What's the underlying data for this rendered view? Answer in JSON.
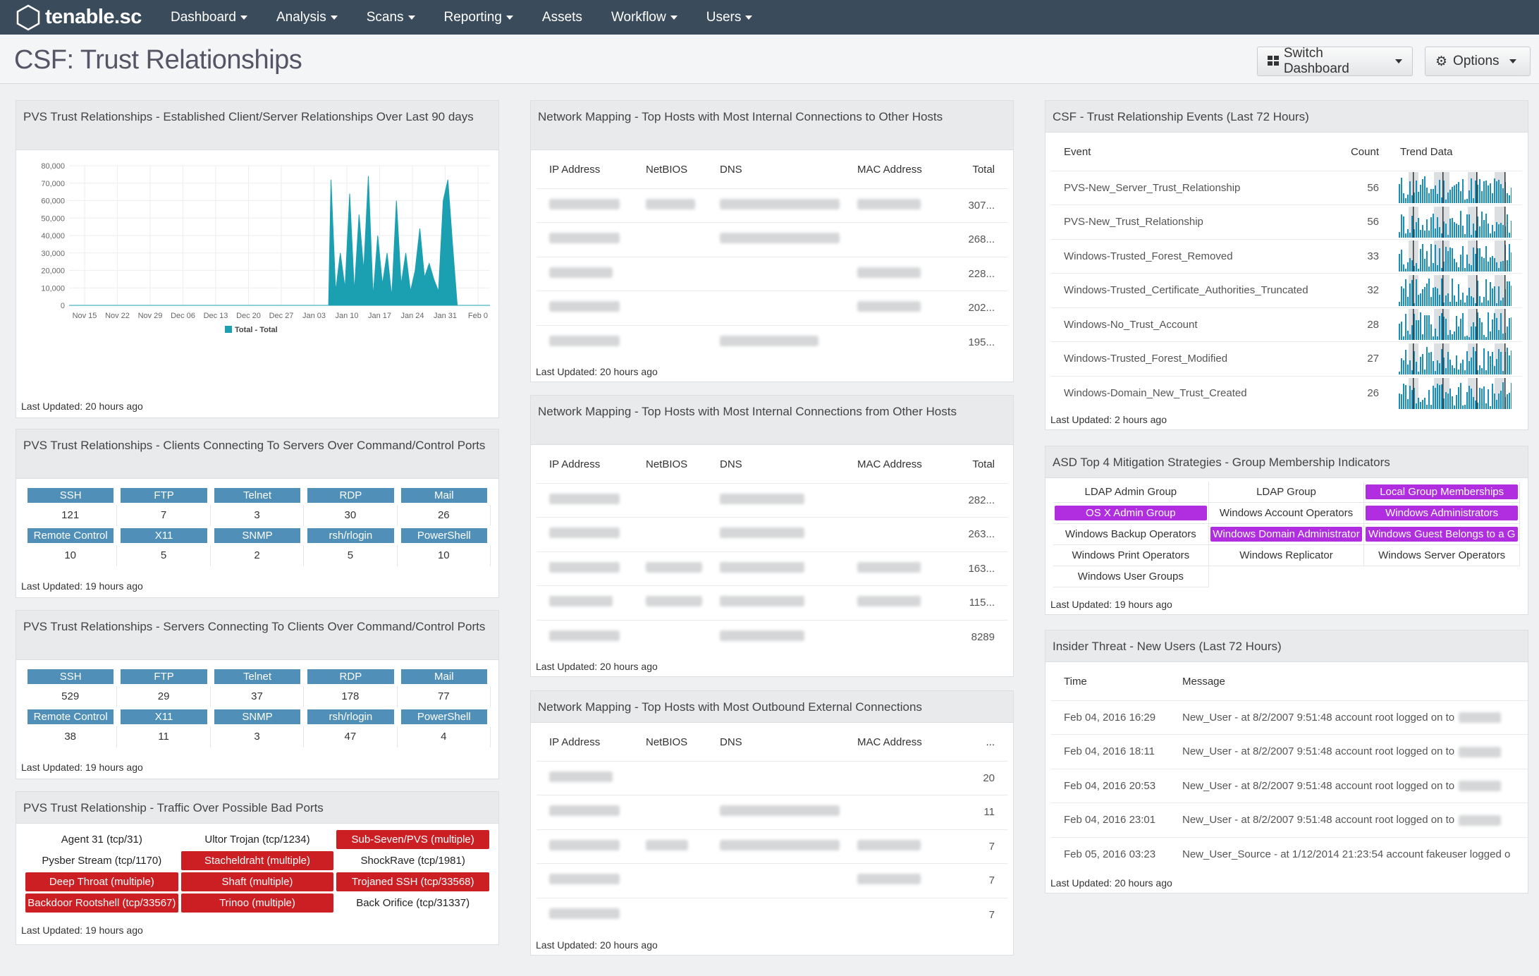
{
  "nav": {
    "brand": "tenable.sc",
    "items": [
      {
        "label": "Dashboard",
        "dd": true
      },
      {
        "label": "Analysis",
        "dd": true
      },
      {
        "label": "Scans",
        "dd": true
      },
      {
        "label": "Reporting",
        "dd": true
      },
      {
        "label": "Assets",
        "dd": false
      },
      {
        "label": "Workflow",
        "dd": true
      },
      {
        "label": "Users",
        "dd": true
      }
    ]
  },
  "page": {
    "title": "CSF: Trust Relationships",
    "switch_label": "Switch Dashboard",
    "options_label": "Options"
  },
  "p1": {
    "title": "PVS Trust Relationships - Established Client/Server Relationships Over Last 90 days",
    "updated": "Last Updated: 20 hours ago"
  },
  "chart_data": {
    "type": "area",
    "title": "",
    "ylim": [
      0,
      80000
    ],
    "y_ticks": [
      "80,000",
      "70,000",
      "60,000",
      "50,000",
      "40,000",
      "30,000",
      "20,000",
      "10,000",
      "0"
    ],
    "x_ticks": [
      "Nov 15",
      "Nov 22",
      "Nov 29",
      "Dec 06",
      "Dec 13",
      "Dec 20",
      "Dec 27",
      "Jan 03",
      "Jan 10",
      "Jan 17",
      "Jan 24",
      "Jan 31",
      "Feb 0"
    ],
    "series": [
      {
        "name": "Total - Total",
        "color": "#1aa0b0",
        "values": [
          [
            0,
            0
          ],
          [
            55.5,
            0
          ],
          [
            56,
            72000
          ],
          [
            57,
            8000
          ],
          [
            58,
            30000
          ],
          [
            59,
            10000
          ],
          [
            60,
            64000
          ],
          [
            61,
            8000
          ],
          [
            62,
            52000
          ],
          [
            63,
            20000
          ],
          [
            64,
            74000
          ],
          [
            65,
            5000
          ],
          [
            66,
            40000
          ],
          [
            67,
            12000
          ],
          [
            68,
            30000
          ],
          [
            69,
            5000
          ],
          [
            70,
            60000
          ],
          [
            71,
            12000
          ],
          [
            72,
            30000
          ],
          [
            73,
            8000
          ],
          [
            74,
            20000
          ],
          [
            75,
            44000
          ],
          [
            76,
            16000
          ],
          [
            77,
            24000
          ],
          [
            78,
            15000
          ],
          [
            79,
            8000
          ],
          [
            80,
            60000
          ],
          [
            81,
            72000
          ],
          [
            82,
            35000
          ],
          [
            83,
            0
          ],
          [
            90,
            0
          ]
        ]
      }
    ]
  },
  "p2": {
    "title": "PVS Trust Relationships - Clients Connecting To Servers Over Command/Control Ports",
    "updated": "Last Updated: 19 hours ago",
    "row1": [
      {
        "label": "SSH",
        "value": "121"
      },
      {
        "label": "FTP",
        "value": "7"
      },
      {
        "label": "Telnet",
        "value": "3"
      },
      {
        "label": "RDP",
        "value": "30"
      },
      {
        "label": "Mail",
        "value": "26"
      }
    ],
    "row2": [
      {
        "label": "Remote Control",
        "value": "10"
      },
      {
        "label": "X11",
        "value": "5"
      },
      {
        "label": "SNMP",
        "value": "2"
      },
      {
        "label": "rsh/rlogin",
        "value": "5"
      },
      {
        "label": "PowerShell",
        "value": "10"
      }
    ]
  },
  "p3": {
    "title": "PVS Trust Relationships - Servers Connecting To Clients Over Command/Control Ports",
    "updated": "Last Updated: 19 hours ago",
    "row1": [
      {
        "label": "SSH",
        "value": "529"
      },
      {
        "label": "FTP",
        "value": "29"
      },
      {
        "label": "Telnet",
        "value": "37"
      },
      {
        "label": "RDP",
        "value": "178"
      },
      {
        "label": "Mail",
        "value": "77"
      }
    ],
    "row2": [
      {
        "label": "Remote Control",
        "value": "38"
      },
      {
        "label": "X11",
        "value": "11"
      },
      {
        "label": "SNMP",
        "value": "3"
      },
      {
        "label": "rsh/rlogin",
        "value": "47"
      },
      {
        "label": "PowerShell",
        "value": "4"
      }
    ]
  },
  "p4": {
    "title": "PVS Trust Relationship - Traffic Over Possible Bad Ports",
    "updated": "Last Updated: 19 hours ago",
    "cells": [
      {
        "t": "Agent 31 (tcp/31)",
        "red": false
      },
      {
        "t": "Ultor Trojan (tcp/1234)",
        "red": false
      },
      {
        "t": "Sub-Seven/PVS (multiple)",
        "red": true
      },
      {
        "t": "Pysber Stream (tcp/1170)",
        "red": false
      },
      {
        "t": "Stacheldraht (multiple)",
        "red": true
      },
      {
        "t": "ShockRave (tcp/1981)",
        "red": false
      },
      {
        "t": "Deep Throat (multiple)",
        "red": true
      },
      {
        "t": "Shaft (multiple)",
        "red": true
      },
      {
        "t": "Trojaned SSH (tcp/33568)",
        "red": true
      },
      {
        "t": "Backdoor Rootshell (tcp/33567)",
        "red": true
      },
      {
        "t": "Trinoo (multiple)",
        "red": true
      },
      {
        "t": "Back Orifice (tcp/31337)",
        "red": false
      }
    ]
  },
  "n1": {
    "title": "Network Mapping - Top Hosts with Most Internal Connections to Other Hosts",
    "updated": "Last Updated: 20 hours ago",
    "cols": [
      "IP Address",
      "NetBIOS",
      "DNS",
      "MAC Address",
      "Total"
    ],
    "totals": [
      "307...",
      "268...",
      "228...",
      "202...",
      "195..."
    ]
  },
  "n2": {
    "title": "Network Mapping - Top Hosts with Most Internal Connections from Other Hosts",
    "updated": "Last Updated: 20 hours ago",
    "cols": [
      "IP Address",
      "NetBIOS",
      "DNS",
      "MAC Address",
      "Total"
    ],
    "totals": [
      "282...",
      "263...",
      "163...",
      "115...",
      "8289"
    ]
  },
  "n3": {
    "title": "Network Mapping - Top Hosts with Most Outbound External Connections",
    "updated": "Last Updated: 20 hours ago",
    "cols": [
      "IP Address",
      "NetBIOS",
      "DNS",
      "MAC Address",
      "..."
    ],
    "totals": [
      "20",
      "11",
      "7",
      "7",
      "7"
    ]
  },
  "e1": {
    "title": "CSF - Trust Relationship Events (Last 72 Hours)",
    "updated": "Last Updated: 2 hours ago",
    "cols": [
      "Event",
      "Count",
      "Trend Data"
    ],
    "rows": [
      {
        "event": "PVS-New_Server_Trust_Relationship",
        "count": "56"
      },
      {
        "event": "PVS-New_Trust_Relationship",
        "count": "56"
      },
      {
        "event": "Windows-Trusted_Forest_Removed",
        "count": "33"
      },
      {
        "event": "Windows-Trusted_Certificate_Authorities_Truncated",
        "count": "32"
      },
      {
        "event": "Windows-No_Trust_Account",
        "count": "28"
      },
      {
        "event": "Windows-Trusted_Forest_Modified",
        "count": "27"
      },
      {
        "event": "Windows-Domain_New_Trust_Created",
        "count": "26"
      }
    ]
  },
  "a1": {
    "title": "ASD Top 4 Mitigation Strategies - Group Membership Indicators",
    "updated": "Last Updated: 19 hours ago",
    "cells": [
      {
        "t": "LDAP Admin Group",
        "p": false
      },
      {
        "t": "LDAP Group",
        "p": false
      },
      {
        "t": "Local Group Memberships",
        "p": true
      },
      {
        "t": "OS X Admin Group",
        "p": true
      },
      {
        "t": "Windows Account Operators",
        "p": false
      },
      {
        "t": "Windows Administrators",
        "p": true
      },
      {
        "t": "Windows Backup Operators",
        "p": false
      },
      {
        "t": "Windows Domain Administrator",
        "p": true
      },
      {
        "t": "Windows Guest Belongs to a G",
        "p": true
      },
      {
        "t": "Windows Print Operators",
        "p": false
      },
      {
        "t": "Windows Replicator",
        "p": false
      },
      {
        "t": "Windows Server Operators",
        "p": false
      },
      {
        "t": "Windows User Groups",
        "p": false
      }
    ]
  },
  "u1": {
    "title": "Insider Threat - New Users (Last 72 Hours)",
    "updated": "Last Updated: 20 hours ago",
    "cols": [
      "Time",
      "Message"
    ],
    "rows": [
      {
        "time": "Feb 04, 2016 16:29",
        "msg": "New_User - at 8/2/2007 9:51:48 account root logged on to"
      },
      {
        "time": "Feb 04, 2016 18:11",
        "msg": "New_User - at 8/2/2007 9:51:48 account root logged on to"
      },
      {
        "time": "Feb 04, 2016 20:53",
        "msg": "New_User - at 8/2/2007 9:51:48 account root logged on to"
      },
      {
        "time": "Feb 04, 2016 23:01",
        "msg": "New_User - at 8/2/2007 9:51:48 account root logged on to"
      },
      {
        "time": "Feb 05, 2016 03:23",
        "msg": "New_User_Source - at 1/12/2014 21:23:54 account fakeuser logged o"
      }
    ]
  }
}
